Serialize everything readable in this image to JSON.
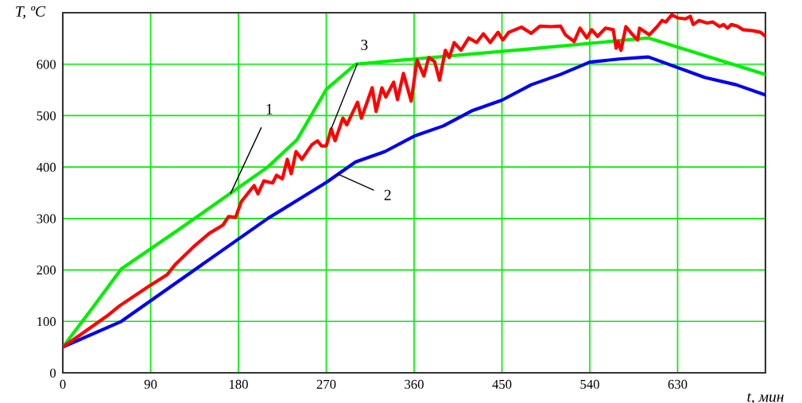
{
  "chart_data": {
    "type": "line",
    "xlabel": "t, мин",
    "ylabel": "T, ºC",
    "xlim": [
      0,
      720
    ],
    "ylim": [
      0,
      700
    ],
    "xticks": [
      0,
      90,
      180,
      270,
      360,
      450,
      540,
      630
    ],
    "yticks": [
      0,
      100,
      200,
      300,
      400,
      500,
      600
    ],
    "grid": true,
    "legend": false,
    "marker": "none",
    "line_style": "solid",
    "series": [
      {
        "color": "#00ee00",
        "x": [
          0,
          30,
          60,
          120,
          210,
          240,
          270,
          300,
          360,
          480,
          600,
          720
        ],
        "values": [
          50,
          125,
          202,
          280,
          400,
          453,
          551,
          600,
          610,
          630,
          651,
          580
        ]
      },
      {
        "color": "#0000ee",
        "x": [
          0,
          60,
          120,
          210,
          270,
          300,
          330,
          360,
          390,
          420,
          450,
          480,
          510,
          540,
          570,
          600,
          658,
          690,
          720
        ],
        "values": [
          50,
          100,
          180,
          300,
          370,
          410,
          430,
          460,
          480,
          510,
          530,
          560,
          580,
          604,
          610,
          614,
          574,
          560,
          540
        ]
      },
      {
        "color": "#ff0000",
        "x": [
          0,
          15,
          30,
          45,
          58,
          88,
          107,
          115,
          134,
          150,
          164,
          170,
          177,
          183,
          196,
          200,
          206,
          215,
          219,
          225,
          230,
          234,
          239,
          245,
          255,
          261,
          265,
          270,
          275,
          279,
          287,
          291,
          302,
          306,
          317,
          321,
          327,
          331,
          339,
          343,
          349,
          357,
          363,
          370,
          375,
          381,
          386,
          392,
          396,
          401,
          408,
          416,
          424,
          431,
          438,
          446,
          451,
          457,
          470,
          480,
          489,
          500,
          510,
          515,
          524,
          530,
          537,
          542,
          548,
          556,
          564,
          567,
          569,
          572,
          577,
          583,
          589,
          591,
          601,
          609,
          614,
          618,
          624,
          630,
          638,
          643,
          646,
          652,
          660,
          666,
          673,
          677,
          681,
          685,
          691,
          697,
          707,
          715,
          720
        ],
        "values": [
          50,
          70,
          90,
          110,
          130,
          168,
          191,
          210,
          245,
          271,
          287,
          304,
          302,
          333,
          364,
          348,
          373,
          369,
          384,
          377,
          415,
          387,
          430,
          415,
          443,
          451,
          441,
          441,
          474,
          451,
          495,
          482,
          526,
          495,
          554,
          508,
          554,
          536,
          565,
          531,
          582,
          528,
          608,
          577,
          613,
          605,
          569,
          627,
          613,
          642,
          627,
          651,
          642,
          659,
          642,
          662,
          647,
          662,
          672,
          660,
          674,
          673,
          674,
          657,
          644,
          670,
          651,
          667,
          654,
          670,
          667,
          631,
          644,
          627,
          673,
          659,
          647,
          670,
          657,
          673,
          685,
          682,
          696,
          690,
          688,
          693,
          677,
          685,
          680,
          682,
          673,
          677,
          670,
          677,
          674,
          667,
          665,
          662,
          654
        ]
      }
    ],
    "annotations": [
      {
        "text": "1",
        "x": 172,
        "y": 349
      },
      {
        "text": "2",
        "x": 282,
        "y": 386
      },
      {
        "text": "3",
        "x": 275,
        "y": 474
      }
    ]
  }
}
